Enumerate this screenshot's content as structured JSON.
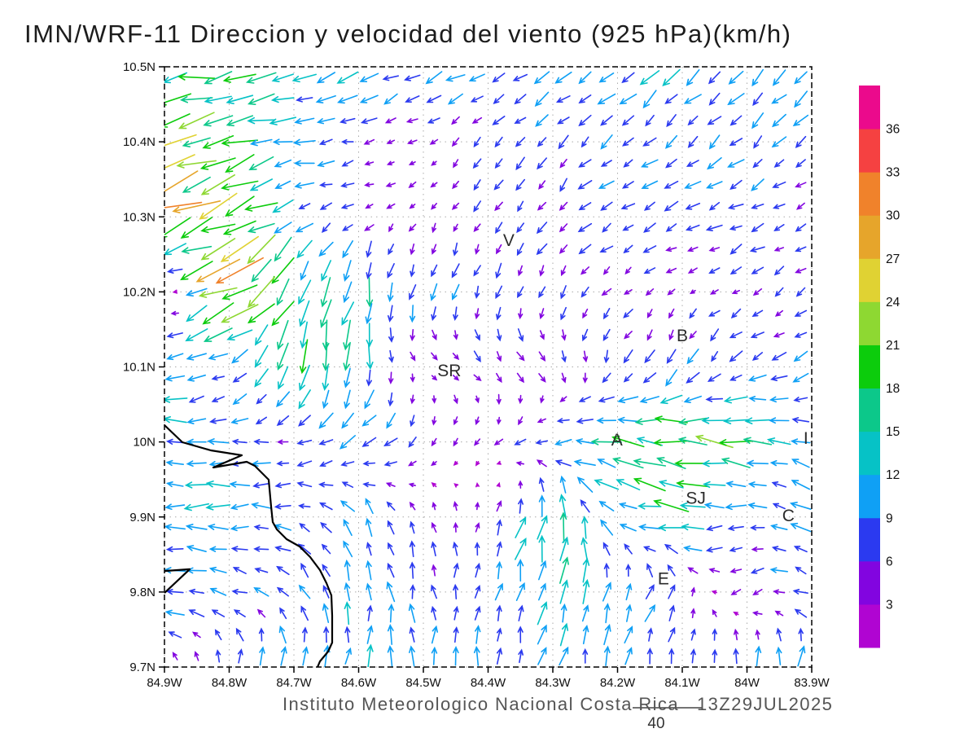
{
  "title": "IMN/WRF-11 Direccion y velocidad del viento (925 hPa)(km/h)",
  "footer": {
    "credit": "Instituto Meteorologico Nacional Costa Rica",
    "datetime": "13Z29JUL2025",
    "reference_vector": {
      "label": "40",
      "value_kmh": 40
    }
  },
  "chart_data": {
    "type": "quiver-map",
    "title": "IMN/WRF-11 Direccion y velocidad del viento (925 hPa)(km/h)",
    "variable": "wind direction and speed",
    "level_hpa": 925,
    "units": "km/h",
    "grid_on": true,
    "axes": {
      "lon_left_w": 84.9,
      "lon_right_w": 83.9,
      "lat_top_n": 10.5,
      "lat_bottom_n": 9.7,
      "x_ticks": [
        {
          "lon_w": 84.9,
          "label": "84.9W"
        },
        {
          "lon_w": 84.8,
          "label": "84.8W"
        },
        {
          "lon_w": 84.7,
          "label": "84.7W"
        },
        {
          "lon_w": 84.6,
          "label": "84.6W"
        },
        {
          "lon_w": 84.5,
          "label": "84.5W"
        },
        {
          "lon_w": 84.4,
          "label": "84.4W"
        },
        {
          "lon_w": 84.3,
          "label": "84.3W"
        },
        {
          "lon_w": 84.2,
          "label": "84.2W"
        },
        {
          "lon_w": 84.1,
          "label": "84.1W"
        },
        {
          "lon_w": 84.0,
          "label": "84W"
        },
        {
          "lon_w": 83.9,
          "label": "83.9W"
        }
      ],
      "y_ticks": [
        {
          "lat_n": 10.5,
          "label": "10.5N"
        },
        {
          "lat_n": 10.4,
          "label": "10.4N"
        },
        {
          "lat_n": 10.3,
          "label": "10.3N"
        },
        {
          "lat_n": 10.2,
          "label": "10.2N"
        },
        {
          "lat_n": 10.1,
          "label": "10.1N"
        },
        {
          "lat_n": 10.0,
          "label": "10N"
        },
        {
          "lat_n": 9.9,
          "label": "9.9N"
        },
        {
          "lat_n": 9.8,
          "label": "9.8N"
        },
        {
          "lat_n": 9.7,
          "label": "9.7N"
        }
      ]
    },
    "colorbar": {
      "position": "right",
      "levels": [
        3,
        6,
        9,
        12,
        15,
        18,
        21,
        24,
        27,
        30,
        33,
        36
      ],
      "colors_bottom_to_top": [
        "#b005d2",
        "#8205e0",
        "#2b3af0",
        "#0fa0f5",
        "#06c2c6",
        "#0cc88a",
        "#0ccc0c",
        "#8ed832",
        "#e0d233",
        "#e6a52b",
        "#f0822b",
        "#f54141",
        "#eb0a8c"
      ]
    },
    "stations": [
      {
        "label": "V",
        "lat_n": 10.269,
        "lon_w": 84.368
      },
      {
        "label": "B",
        "lat_n": 10.142,
        "lon_w": 84.1
      },
      {
        "label": "SR",
        "lat_n": 10.095,
        "lon_w": 84.46
      },
      {
        "label": "A",
        "lat_n": 10.003,
        "lon_w": 84.201
      },
      {
        "label": "SJ",
        "lat_n": 9.925,
        "lon_w": 84.079
      },
      {
        "label": "C",
        "lat_n": 9.902,
        "lon_w": 83.936
      },
      {
        "label": "E",
        "lat_n": 9.818,
        "lon_w": 84.129
      },
      {
        "label": "I",
        "lat_n": 10.005,
        "lon_w": 83.909
      }
    ],
    "wind_grid": {
      "comment": "flow components (km/h), u eastward, v northward; rows = lats_n top->bottom, cols = lons_w left->right",
      "lons_w": [
        84.9,
        84.8,
        84.7,
        84.6,
        84.5,
        84.4,
        84.3,
        84.2,
        84.1,
        84.0,
        83.9
      ],
      "lats_n": [
        10.5,
        10.4,
        10.3,
        10.2,
        10.1,
        10.0,
        9.9,
        9.8,
        9.7
      ],
      "u_kmh": [
        [
          -18,
          -15,
          -12,
          -10,
          -10,
          -9,
          -8,
          -8,
          -8,
          -8,
          -8
        ],
        [
          -21,
          -16,
          -10,
          -6,
          -3,
          -4,
          -5,
          -6,
          -6,
          -6,
          -6
        ],
        [
          -26,
          -20,
          -8,
          -4,
          -2,
          -3,
          -4,
          -6,
          -7,
          -7,
          -5
        ],
        [
          3,
          -26,
          -6,
          -3,
          -2,
          -2,
          -3,
          -4,
          -3,
          -4,
          -4
        ],
        [
          -12,
          -6,
          -5,
          -2,
          3,
          4,
          4,
          -3,
          -4,
          -7,
          -8
        ],
        [
          -10,
          -10,
          -6,
          -9,
          -3,
          -2,
          -8,
          -16,
          -20,
          -14,
          -9
        ],
        [
          -11,
          -11,
          -8,
          -4,
          -2,
          2,
          4,
          -10,
          -17,
          -7,
          -9
        ],
        [
          -10,
          -9,
          -4,
          0,
          -2,
          2,
          2,
          4,
          2,
          -6,
          -8
        ],
        [
          -4,
          2,
          2,
          2,
          1,
          1,
          2,
          2,
          0,
          2,
          2
        ]
      ],
      "v_kmh": [
        [
          -2,
          -3,
          -4,
          -5,
          -5,
          -6,
          -6,
          -7,
          -7,
          -7,
          -7
        ],
        [
          -4,
          -5,
          -2,
          -1,
          -2,
          -4,
          -5,
          -5,
          -5,
          -6,
          -6
        ],
        [
          -11,
          -8,
          -3,
          -2,
          -3,
          -5,
          -6,
          -4,
          -3,
          -3,
          -3
        ],
        [
          2,
          -13,
          -16,
          -14,
          -8,
          -7,
          -6,
          -3,
          -2,
          -3,
          -3
        ],
        [
          -2,
          -4,
          -16,
          -12,
          -3,
          -4,
          -5,
          -6,
          -8,
          -4,
          -3
        ],
        [
          0,
          -1,
          -2,
          -6,
          -5,
          -4,
          -1,
          2,
          3,
          3,
          1
        ],
        [
          0,
          0,
          2,
          8,
          6,
          4,
          16,
          4,
          0,
          -2,
          6
        ],
        [
          1,
          2,
          6,
          10,
          8,
          8,
          12,
          10,
          6,
          -4,
          4
        ],
        [
          4,
          8,
          10,
          12,
          10,
          8,
          8,
          10,
          6,
          10,
          12
        ]
      ]
    },
    "coastline_frac": [
      [
        0.0,
        0.597
      ],
      [
        0.0277,
        0.6255
      ],
      [
        0.0717,
        0.6391
      ],
      [
        0.1195,
        0.6472
      ],
      [
        0.0755,
        0.6676
      ],
      [
        0.127,
        0.6581
      ],
      [
        0.1396,
        0.6649
      ],
      [
        0.161,
        0.6879
      ],
      [
        0.1648,
        0.7327
      ],
      [
        0.1673,
        0.7585
      ],
      [
        0.1736,
        0.7707
      ],
      [
        0.1887,
        0.787
      ],
      [
        0.2088,
        0.7992
      ],
      [
        0.2252,
        0.8168
      ],
      [
        0.2403,
        0.8385
      ],
      [
        0.2503,
        0.8602
      ],
      [
        0.2579,
        0.8806
      ],
      [
        0.2591,
        0.9145
      ],
      [
        0.2591,
        0.9593
      ],
      [
        0.2528,
        0.9742
      ],
      [
        0.2403,
        0.9905
      ],
      [
        0.2365,
        1.0
      ]
    ],
    "islet_frac": [
      [
        0.0,
        0.84
      ],
      [
        0.039,
        0.837
      ],
      [
        0.0,
        0.8766
      ]
    ]
  }
}
